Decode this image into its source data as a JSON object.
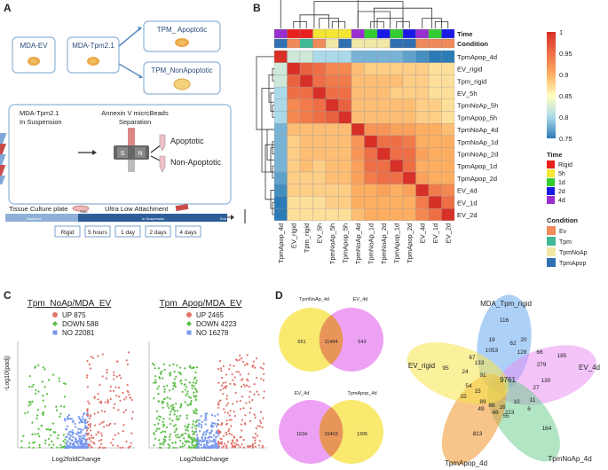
{
  "panels": {
    "a": "A",
    "b": "B",
    "c": "C",
    "d": "D"
  },
  "panel_a": {
    "box_mda_ev": "MDA-EV",
    "box_mda_tpm": "MDA-Tpm2.1",
    "box_apoptotic": "TPM_ Apoptotic",
    "box_nonapoptotic": "TPM_NonApoptotic",
    "suspension_line1": "MDA-Tpm2.1",
    "suspension_line2": "In Suspension",
    "annexin_line1": "Annexin V micrcBeads",
    "annexin_line2": "Separation",
    "column_s": "S",
    "column_n": "N",
    "out_apoptotic": "Apoptotic",
    "out_nonapoptotic": "Non-Apoptotic",
    "tissue_plate": "Tissue Culture plate",
    "ultra_low": "Ultra Low Attachment",
    "bar_attached": "Attached",
    "bar_start": "Start",
    "bar_suspended": "In Suspension",
    "bar_end": "End",
    "timeline": [
      "Rigid",
      "5 hours",
      "1 day",
      "2 days",
      "4 days"
    ]
  },
  "panel_c": {
    "plot1_title": "Tpm_NoAp/MDA_EV",
    "plot2_title": "Tpm_Apop/MDA_EV",
    "ylabel": "-Log10(padj)",
    "xlabel": "Log2foldChange",
    "plot1_legend": [
      "UP 875",
      "DOWN 588",
      "NO 22081"
    ],
    "plot2_legend": [
      "UP 2465",
      "DOWN 4223",
      "NO 16278"
    ],
    "colors": {
      "up": "#e0736b",
      "down": "#5fbf4a",
      "no": "#7799ee"
    }
  },
  "panel_d": {
    "venn1_labels": [
      "TpmNoAp_4d",
      "EV_4d"
    ],
    "venn1_values": [
      "651",
      "11494",
      "543"
    ],
    "venn2_labels": [
      "EV_4d",
      "TpmApop_4d"
    ],
    "venn2_values": [
      "1634",
      "10403",
      "1306"
    ],
    "venn5_labels": [
      "MDA_Tpm_rigid",
      "EV_4d",
      "TpmNoAp_4d",
      "TpmApop_4d",
      "EV_rigid"
    ],
    "venn5_numbers": [
      "116",
      "20",
      "19",
      "62",
      "1053",
      "128",
      "66",
      "67",
      "133",
      "185",
      "279",
      "130",
      "95",
      "24",
      "9761",
      "27",
      "54",
      "15",
      "11",
      "89",
      "10",
      "16",
      "86",
      "6",
      "49",
      "48",
      "223",
      "55",
      "813",
      "164",
      "91",
      "15"
    ]
  },
  "chart_data": {
    "type": "heatmap",
    "rows": [
      "TpmApop_4d",
      "EV_rigid",
      "Tpm_rigid",
      "EV_5h",
      "TpmNoAp_5h",
      "TpmApop_5h",
      "TpmNoAp_4d",
      "TpmNoAp_1d",
      "TpmNoAp_2d",
      "TpmApop_1d",
      "TpmApop_2d",
      "EV_4d",
      "EV_1d",
      "EV_2d"
    ],
    "columns": [
      "TpmApop_4d",
      "EV_rigid",
      "Tpm_rigid",
      "EV_5h",
      "TpmNoAp_5h",
      "TpmApop_5h",
      "TpmNoAp_4d",
      "TpmNoAp_1d",
      "TpmNoAp_2d",
      "TpmApop_1d",
      "TpmApop_2d",
      "EV_4d",
      "EV_1d",
      "EV_2d"
    ],
    "values": [
      [
        1.0,
        0.82,
        0.82,
        0.8,
        0.8,
        0.8,
        0.78,
        0.78,
        0.78,
        0.78,
        0.77,
        0.76,
        0.75,
        0.75
      ],
      [
        0.82,
        1.0,
        0.96,
        0.95,
        0.93,
        0.93,
        0.89,
        0.88,
        0.88,
        0.88,
        0.88,
        0.88,
        0.87,
        0.87
      ],
      [
        0.82,
        0.96,
        1.0,
        0.95,
        0.94,
        0.94,
        0.89,
        0.89,
        0.89,
        0.89,
        0.88,
        0.88,
        0.87,
        0.87
      ],
      [
        0.8,
        0.95,
        0.95,
        1.0,
        0.95,
        0.95,
        0.89,
        0.89,
        0.89,
        0.88,
        0.88,
        0.88,
        0.87,
        0.87
      ],
      [
        0.8,
        0.93,
        0.94,
        0.95,
        1.0,
        0.96,
        0.89,
        0.89,
        0.89,
        0.89,
        0.89,
        0.88,
        0.88,
        0.87
      ],
      [
        0.8,
        0.93,
        0.94,
        0.95,
        0.96,
        1.0,
        0.89,
        0.89,
        0.89,
        0.89,
        0.89,
        0.88,
        0.88,
        0.87
      ],
      [
        0.78,
        0.89,
        0.89,
        0.89,
        0.89,
        0.89,
        1.0,
        0.92,
        0.92,
        0.91,
        0.91,
        0.9,
        0.9,
        0.89
      ],
      [
        0.78,
        0.88,
        0.89,
        0.89,
        0.89,
        0.89,
        0.92,
        1.0,
        0.95,
        0.95,
        0.94,
        0.9,
        0.9,
        0.9
      ],
      [
        0.78,
        0.88,
        0.89,
        0.89,
        0.89,
        0.89,
        0.92,
        0.95,
        1.0,
        0.95,
        0.95,
        0.91,
        0.9,
        0.9
      ],
      [
        0.78,
        0.88,
        0.89,
        0.88,
        0.89,
        0.89,
        0.91,
        0.95,
        0.95,
        1.0,
        0.95,
        0.9,
        0.9,
        0.9
      ],
      [
        0.77,
        0.88,
        0.88,
        0.88,
        0.89,
        0.89,
        0.91,
        0.94,
        0.95,
        0.95,
        1.0,
        0.91,
        0.9,
        0.9
      ],
      [
        0.76,
        0.88,
        0.88,
        0.88,
        0.88,
        0.88,
        0.9,
        0.9,
        0.91,
        0.9,
        0.91,
        1.0,
        0.94,
        0.93
      ],
      [
        0.75,
        0.87,
        0.87,
        0.87,
        0.88,
        0.88,
        0.9,
        0.9,
        0.9,
        0.9,
        0.9,
        0.94,
        1.0,
        0.95
      ],
      [
        0.75,
        0.87,
        0.87,
        0.87,
        0.87,
        0.87,
        0.89,
        0.9,
        0.9,
        0.9,
        0.9,
        0.93,
        0.95,
        1.0
      ]
    ],
    "colorbar": {
      "min": 0.75,
      "max": 1,
      "ticks": [
        "1",
        "0.95",
        "0.9",
        "0.85",
        "0.8",
        "0.75"
      ]
    },
    "annotation_rows": [
      "Time",
      "Condition"
    ],
    "time_by_column": [
      "4d",
      "Rigid",
      "Rigid",
      "5h",
      "5h",
      "5h",
      "4d",
      "1d",
      "2d",
      "1d",
      "2d",
      "4d",
      "1d",
      "2d"
    ],
    "condition_by_column": [
      "TpmApop",
      "Ev",
      "Tpm",
      "Ev",
      "TpmNoAp",
      "TpmApop",
      "TpmNoAp",
      "TpmNoAp",
      "TpmNoAp",
      "TpmApop",
      "TpmApop",
      "Ev",
      "Ev",
      "Ev"
    ],
    "legend_time_title": "Time",
    "legend_time": [
      {
        "label": "Rigid",
        "color": "#e8201e"
      },
      {
        "label": "5h",
        "color": "#f5e634"
      },
      {
        "label": "1d",
        "color": "#33cc33"
      },
      {
        "label": "2d",
        "color": "#1a1ae6"
      },
      {
        "label": "4d",
        "color": "#9a2fd0"
      }
    ],
    "legend_condition_title": "Condition",
    "legend_condition": [
      {
        "label": "Ev",
        "color": "#ef8a5a"
      },
      {
        "label": "Tpm",
        "color": "#41b894"
      },
      {
        "label": "TpmNoAp",
        "color": "#f2e8a6"
      },
      {
        "label": "TpmApop",
        "color": "#2f6fb2"
      }
    ]
  }
}
